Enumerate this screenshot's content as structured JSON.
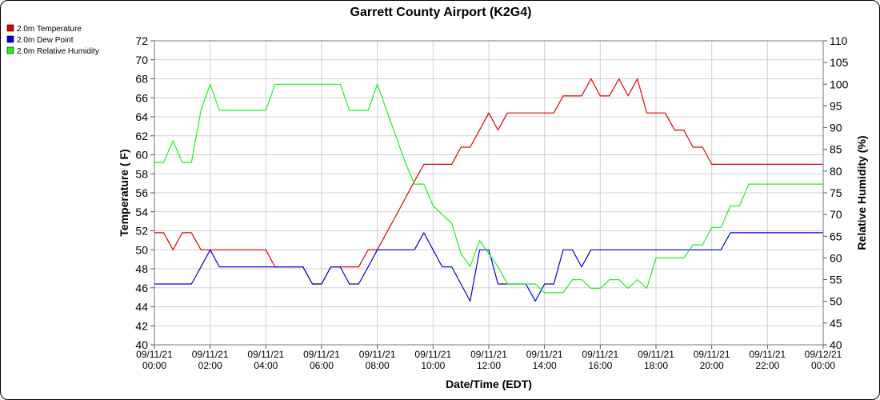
{
  "chart_data": {
    "type": "line",
    "title": "Garrett County Airport (K2G4)",
    "xlabel": "Date/Time (EDT)",
    "ylabel": "Temperature ( F)",
    "y2label": "Relative Humidity (%)",
    "xlim": [
      0,
      24
    ],
    "ylim": [
      40,
      72
    ],
    "y2lim": [
      40,
      110
    ],
    "grid": true,
    "legend_position": "top-left",
    "x_tick_labels": [
      {
        "x": 0,
        "line1": "09/11/21",
        "line2": "00:00"
      },
      {
        "x": 2,
        "line1": "09/11/21",
        "line2": "02:00"
      },
      {
        "x": 4,
        "line1": "09/11/21",
        "line2": "04:00"
      },
      {
        "x": 6,
        "line1": "09/11/21",
        "line2": "06:00"
      },
      {
        "x": 8,
        "line1": "09/11/21",
        "line2": "08:00"
      },
      {
        "x": 10,
        "line1": "09/11/21",
        "line2": "10:00"
      },
      {
        "x": 12,
        "line1": "09/11/21",
        "line2": "12:00"
      },
      {
        "x": 14,
        "line1": "09/11/21",
        "line2": "14:00"
      },
      {
        "x": 16,
        "line1": "09/11/21",
        "line2": "16:00"
      },
      {
        "x": 18,
        "line1": "09/11/21",
        "line2": "18:00"
      },
      {
        "x": 20,
        "line1": "09/11/21",
        "line2": "20:00"
      },
      {
        "x": 22,
        "line1": "09/11/21",
        "line2": "22:00"
      },
      {
        "x": 24,
        "line1": "09/12/21",
        "line2": "00:00"
      }
    ],
    "y_ticks": [
      40,
      42,
      44,
      46,
      48,
      50,
      52,
      54,
      56,
      58,
      60,
      62,
      64,
      66,
      68,
      70,
      72
    ],
    "y2_ticks": [
      40,
      45,
      50,
      55,
      60,
      65,
      70,
      75,
      80,
      85,
      90,
      95,
      100,
      105,
      110
    ],
    "series": [
      {
        "name": "2.0m Temperature",
        "color": "#e00000",
        "axis": "left",
        "x": [
          0.0,
          0.33,
          0.67,
          1.0,
          1.33,
          1.67,
          2.0,
          2.33,
          2.67,
          3.0,
          3.33,
          3.67,
          4.0,
          4.33,
          4.67,
          5.0,
          5.33,
          5.67,
          6.0,
          6.33,
          6.67,
          7.0,
          7.33,
          7.67,
          8.0,
          8.33,
          8.67,
          9.0,
          9.33,
          9.67,
          10.0,
          10.33,
          10.67,
          11.0,
          11.33,
          11.67,
          12.0,
          12.33,
          12.67,
          13.0,
          13.33,
          13.67,
          14.0,
          14.33,
          14.67,
          15.0,
          15.33,
          15.67,
          16.0,
          16.33,
          16.67,
          17.0,
          17.33,
          17.67,
          18.0,
          18.33,
          18.67,
          19.0,
          19.33,
          19.67,
          20.0,
          20.33,
          20.67,
          21.0,
          21.33,
          21.67,
          22.0,
          22.33,
          22.67,
          23.0,
          23.33,
          23.67,
          24.0
        ],
        "values": [
          51.8,
          51.8,
          50.0,
          51.8,
          51.8,
          50.0,
          50.0,
          50.0,
          50.0,
          50.0,
          50.0,
          50.0,
          50.0,
          48.2,
          48.2,
          48.2,
          48.2,
          46.4,
          46.4,
          48.2,
          48.2,
          48.2,
          48.2,
          50.0,
          50.0,
          51.8,
          53.6,
          55.4,
          57.2,
          59.0,
          59.0,
          59.0,
          59.0,
          60.8,
          60.8,
          62.6,
          64.4,
          62.6,
          64.4,
          64.4,
          64.4,
          64.4,
          64.4,
          64.4,
          66.2,
          66.2,
          66.2,
          68.0,
          66.2,
          66.2,
          68.0,
          66.2,
          68.0,
          64.4,
          64.4,
          64.4,
          62.6,
          62.6,
          60.8,
          60.8,
          59.0,
          59.0,
          59.0,
          59.0,
          59.0,
          59.0,
          59.0,
          59.0,
          59.0,
          59.0,
          59.0,
          59.0,
          59.0
        ]
      },
      {
        "name": "2.0m Dew Point",
        "color": "#0000dd",
        "axis": "left",
        "x": [
          0.0,
          0.33,
          0.67,
          1.0,
          1.33,
          1.67,
          2.0,
          2.33,
          2.67,
          3.0,
          3.33,
          3.67,
          4.0,
          4.33,
          4.67,
          5.0,
          5.33,
          5.67,
          6.0,
          6.33,
          6.67,
          7.0,
          7.33,
          7.67,
          8.0,
          8.33,
          8.67,
          9.0,
          9.33,
          9.67,
          10.0,
          10.33,
          10.67,
          11.0,
          11.33,
          11.67,
          12.0,
          12.33,
          12.67,
          13.0,
          13.33,
          13.67,
          14.0,
          14.33,
          14.67,
          15.0,
          15.33,
          15.67,
          16.0,
          16.33,
          16.67,
          17.0,
          17.33,
          17.67,
          18.0,
          18.33,
          18.67,
          19.0,
          19.33,
          19.67,
          20.0,
          20.33,
          20.67,
          21.0,
          21.33,
          21.67,
          22.0,
          22.33,
          22.67,
          23.0,
          23.33,
          23.67,
          24.0
        ],
        "values": [
          46.4,
          46.4,
          46.4,
          46.4,
          46.4,
          48.2,
          50.0,
          48.2,
          48.2,
          48.2,
          48.2,
          48.2,
          48.2,
          48.2,
          48.2,
          48.2,
          48.2,
          46.4,
          46.4,
          48.2,
          48.2,
          46.4,
          46.4,
          48.2,
          50.0,
          50.0,
          50.0,
          50.0,
          50.0,
          51.8,
          50.0,
          48.2,
          48.2,
          46.4,
          44.6,
          50.0,
          50.0,
          46.4,
          46.4,
          46.4,
          46.4,
          44.6,
          46.4,
          46.4,
          50.0,
          50.0,
          48.2,
          50.0,
          50.0,
          50.0,
          50.0,
          50.0,
          50.0,
          50.0,
          50.0,
          50.0,
          50.0,
          50.0,
          50.0,
          50.0,
          50.0,
          50.0,
          51.8,
          51.8,
          51.8,
          51.8,
          51.8,
          51.8,
          51.8,
          51.8,
          51.8,
          51.8,
          51.8
        ]
      },
      {
        "name": "2.0m Relative Humidity",
        "color": "#22ee22",
        "axis": "right",
        "x": [
          0.0,
          0.33,
          0.67,
          1.0,
          1.33,
          1.67,
          2.0,
          2.33,
          2.67,
          3.0,
          3.33,
          3.67,
          4.0,
          4.33,
          4.67,
          5.0,
          5.33,
          5.67,
          6.0,
          6.33,
          6.67,
          7.0,
          7.33,
          7.67,
          8.0,
          8.33,
          8.67,
          9.0,
          9.33,
          9.67,
          10.0,
          10.33,
          10.67,
          11.0,
          11.33,
          11.67,
          12.0,
          12.33,
          12.67,
          13.0,
          13.33,
          13.67,
          14.0,
          14.33,
          14.67,
          15.0,
          15.33,
          15.67,
          16.0,
          16.33,
          16.67,
          17.0,
          17.33,
          17.67,
          18.0,
          18.33,
          18.67,
          19.0,
          19.33,
          19.67,
          20.0,
          20.33,
          20.67,
          21.0,
          21.33,
          21.67,
          22.0,
          22.33,
          22.67,
          23.0,
          23.33,
          23.67,
          24.0
        ],
        "values": [
          82,
          82,
          87,
          82,
          82,
          94,
          100,
          94,
          94,
          94,
          94,
          94,
          94,
          100,
          100,
          100,
          100,
          100,
          100,
          100,
          100,
          94,
          94,
          94,
          100,
          94,
          88,
          82,
          77,
          77,
          72,
          70,
          68,
          61,
          58,
          64,
          61,
          58,
          54,
          54,
          54,
          54,
          52,
          52,
          52,
          55,
          55,
          53,
          53,
          55,
          55,
          53,
          55,
          53,
          60,
          60,
          60,
          60,
          63,
          63,
          67,
          67,
          72,
          72,
          77,
          77,
          77,
          77,
          77,
          77,
          77,
          77,
          77
        ]
      }
    ]
  }
}
